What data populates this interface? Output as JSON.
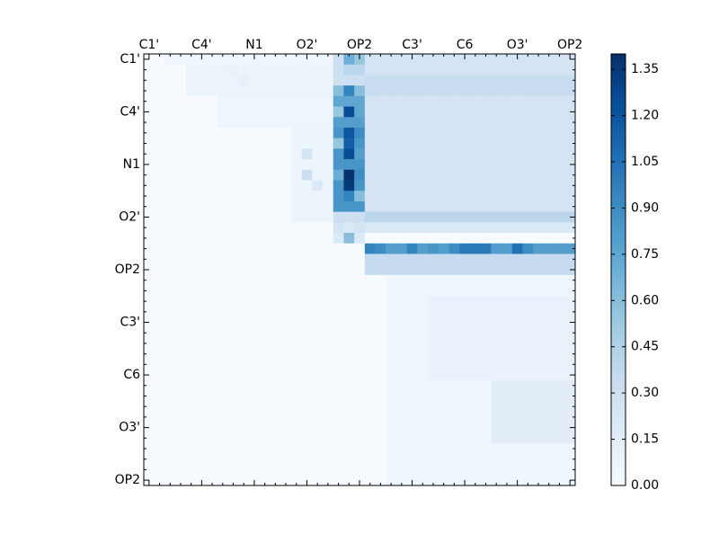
{
  "chart_data": {
    "type": "heatmap",
    "grid_size": 41,
    "x_tick_labels": [
      "C1'",
      "C4'",
      "N1",
      "O2'",
      "OP2",
      "C3'",
      "C6",
      "O3'",
      "OP2"
    ],
    "y_tick_labels": [
      "C1'",
      "C4'",
      "N1",
      "O2'",
      "OP2",
      "C3'",
      "C6",
      "O3'",
      "OP2"
    ],
    "label_index_step": 5,
    "colorbar": {
      "min": 0.0,
      "max": 1.4,
      "ticks": [
        "0.00",
        "0.15",
        "0.30",
        "0.45",
        "0.60",
        "0.75",
        "0.90",
        "1.05",
        "1.20",
        "1.35"
      ],
      "colormap": [
        "#f7fbff",
        "#deebf7",
        "#c6dbef",
        "#9ecae1",
        "#6baed6",
        "#4292c6",
        "#2171b5",
        "#08519c",
        "#08306b"
      ]
    },
    "regions": [
      {
        "rows": [
          0,
          0
        ],
        "cols": [
          2,
          17
        ],
        "value": 0.05
      },
      {
        "rows": [
          1,
          3
        ],
        "cols": [
          4,
          17
        ],
        "value": 0.08
      },
      {
        "rows": [
          4,
          6
        ],
        "cols": [
          7,
          17
        ],
        "value": 0.06
      },
      {
        "rows": [
          7,
          15
        ],
        "cols": [
          14,
          17
        ],
        "value": 0.07
      },
      {
        "rows": [
          0,
          15
        ],
        "cols": [
          18,
          20
        ],
        "value": 0.3
      },
      {
        "rows": [
          3,
          4
        ],
        "cols": [
          18,
          20
        ],
        "value": 0.75
      },
      {
        "rows": [
          5,
          6
        ],
        "cols": [
          18,
          20
        ],
        "value": 0.8
      },
      {
        "rows": [
          7,
          14
        ],
        "cols": [
          18,
          20
        ],
        "value": 0.85
      },
      {
        "rows": [
          0,
          14
        ],
        "cols": [
          21,
          40
        ],
        "value": 0.25
      },
      {
        "rows": [
          2,
          3
        ],
        "cols": [
          21,
          40
        ],
        "value": 0.33
      },
      {
        "rows": [
          15,
          15
        ],
        "cols": [
          21,
          40
        ],
        "value": 0.4
      },
      {
        "rows": [
          16,
          16
        ],
        "cols": [
          18,
          20
        ],
        "value": 0.25
      },
      {
        "rows": [
          16,
          16
        ],
        "cols": [
          21,
          40
        ],
        "value": 0.2
      },
      {
        "rows": [
          17,
          17
        ],
        "cols": [
          18,
          20
        ],
        "value": 0.2
      },
      {
        "rows": [
          18,
          18
        ],
        "cols": [
          21,
          40
        ],
        "value": 0.8
      },
      {
        "rows": [
          19,
          20
        ],
        "cols": [
          21,
          40
        ],
        "value": 0.35
      },
      {
        "rows": [
          21,
          40
        ],
        "cols": [
          23,
          40
        ],
        "value": 0.05
      },
      {
        "rows": [
          23,
          30
        ],
        "cols": [
          27,
          40
        ],
        "value": 0.1
      },
      {
        "rows": [
          31,
          36
        ],
        "cols": [
          33,
          40
        ],
        "value": 0.15
      }
    ],
    "cells": [
      [
        0,
        19,
        0.7
      ],
      [
        0,
        20,
        0.55
      ],
      [
        1,
        19,
        0.4
      ],
      [
        1,
        20,
        0.4
      ],
      [
        3,
        19,
        0.95
      ],
      [
        3,
        18,
        0.6
      ],
      [
        3,
        20,
        0.6
      ],
      [
        5,
        19,
        1.25
      ],
      [
        5,
        18,
        0.55
      ],
      [
        5,
        20,
        0.75
      ],
      [
        7,
        19,
        1.2
      ],
      [
        7,
        20,
        0.9
      ],
      [
        8,
        19,
        1.15
      ],
      [
        8,
        18,
        0.55
      ],
      [
        9,
        19,
        1.25
      ],
      [
        9,
        20,
        0.8
      ],
      [
        11,
        19,
        1.4
      ],
      [
        11,
        18,
        0.7
      ],
      [
        11,
        20,
        0.9
      ],
      [
        12,
        19,
        1.35
      ],
      [
        12,
        20,
        0.85
      ],
      [
        13,
        19,
        0.95
      ],
      [
        13,
        20,
        0.6
      ],
      [
        16,
        19,
        0.2
      ],
      [
        17,
        19,
        0.6
      ],
      [
        18,
        21,
        0.95
      ],
      [
        18,
        22,
        0.9
      ],
      [
        18,
        25,
        0.95
      ],
      [
        18,
        27,
        0.85
      ],
      [
        18,
        29,
        0.9
      ],
      [
        18,
        30,
        1.0
      ],
      [
        18,
        31,
        1.0
      ],
      [
        18,
        32,
        1.0
      ],
      [
        18,
        35,
        1.05
      ],
      [
        18,
        36,
        0.9
      ],
      [
        9,
        15,
        0.25
      ],
      [
        11,
        15,
        0.3
      ],
      [
        12,
        16,
        0.2
      ],
      [
        1,
        8,
        0.1
      ],
      [
        2,
        9,
        0.12
      ]
    ]
  }
}
